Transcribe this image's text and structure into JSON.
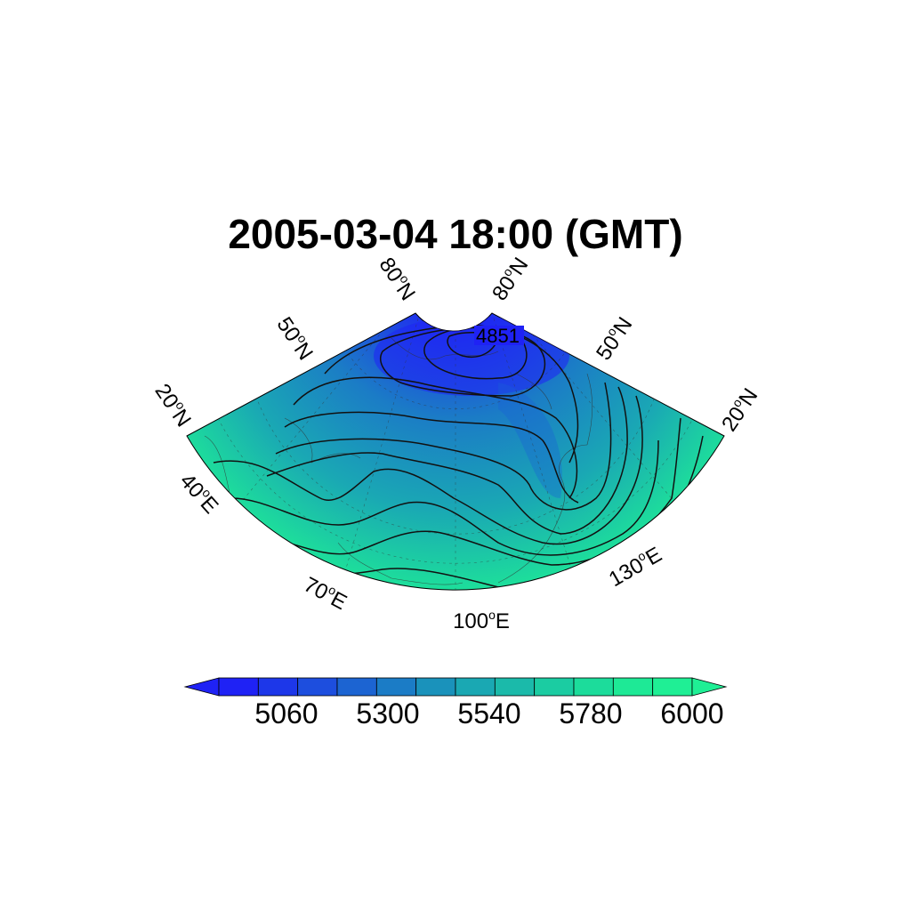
{
  "map": {
    "title": "2005-03-04 18:00 (GMT)",
    "projection": "polar sector",
    "lat_labels": {
      "left": [
        "80",
        "50",
        "20"
      ],
      "right": [
        "80",
        "50",
        "20"
      ],
      "suffix": "N"
    },
    "lon_labels": {
      "items": [
        "40",
        "70",
        "100",
        "130"
      ],
      "suffix": "E"
    },
    "contour_label": "4851",
    "colors": {
      "low": "#1f22f5",
      "mid": "#1aa8b4",
      "high": "#1ee996"
    }
  },
  "colorbar": {
    "tick_labels": [
      "5060",
      "5300",
      "5540",
      "5780",
      "6000"
    ],
    "colors": [
      "#1f22f5",
      "#1d37e9",
      "#1d4ede",
      "#1c64d2",
      "#1b7cc6",
      "#1a92bb",
      "#1aa8b3",
      "#1bbaaa",
      "#1bcca2",
      "#1cdc9b",
      "#1ee996",
      "#1fef95"
    ],
    "extend": "both"
  }
}
